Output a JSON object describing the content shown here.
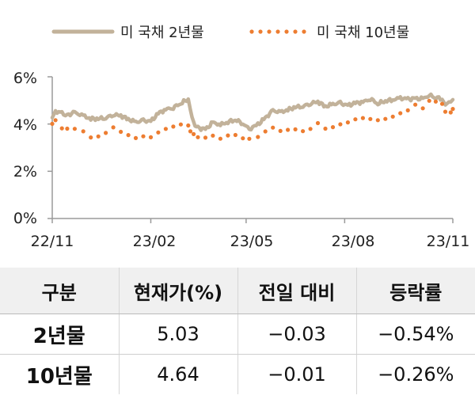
{
  "chart_data": {
    "type": "line",
    "title": "",
    "xlabel": "",
    "ylabel": "",
    "x_ticks": [
      "22/11",
      "23/02",
      "23/05",
      "23/08",
      "23/11"
    ],
    "y_ticks": [
      "0%",
      "2%",
      "4%",
      "6%"
    ],
    "ylim": [
      0,
      6
    ],
    "grid": false,
    "legend_position": "top",
    "series": [
      {
        "name": "미 국채 2년물",
        "style": "solid",
        "color": "#c2b29a",
        "points": [
          [
            "2022-11-01",
            4.3
          ],
          [
            "2022-11-04",
            4.55
          ],
          [
            "2022-11-10",
            4.45
          ],
          [
            "2022-11-15",
            4.38
          ],
          [
            "2022-11-22",
            4.48
          ],
          [
            "2022-11-30",
            4.35
          ],
          [
            "2022-12-07",
            4.22
          ],
          [
            "2022-12-14",
            4.23
          ],
          [
            "2022-12-21",
            4.26
          ],
          [
            "2022-12-28",
            4.4
          ],
          [
            "2023-01-04",
            4.36
          ],
          [
            "2023-01-11",
            4.2
          ],
          [
            "2023-01-18",
            4.08
          ],
          [
            "2023-01-25",
            4.14
          ],
          [
            "2023-02-01",
            4.11
          ],
          [
            "2023-02-08",
            4.45
          ],
          [
            "2023-02-15",
            4.62
          ],
          [
            "2023-02-22",
            4.7
          ],
          [
            "2023-03-01",
            4.88
          ],
          [
            "2023-03-08",
            5.05
          ],
          [
            "2023-03-10",
            4.6
          ],
          [
            "2023-03-13",
            4.03
          ],
          [
            "2023-03-17",
            3.84
          ],
          [
            "2023-03-24",
            3.77
          ],
          [
            "2023-03-31",
            4.06
          ],
          [
            "2023-04-07",
            3.97
          ],
          [
            "2023-04-14",
            4.09
          ],
          [
            "2023-04-21",
            4.18
          ],
          [
            "2023-04-28",
            4.03
          ],
          [
            "2023-05-04",
            3.78
          ],
          [
            "2023-05-12",
            3.98
          ],
          [
            "2023-05-19",
            4.26
          ],
          [
            "2023-05-26",
            4.56
          ],
          [
            "2023-06-02",
            4.5
          ],
          [
            "2023-06-09",
            4.6
          ],
          [
            "2023-06-16",
            4.72
          ],
          [
            "2023-06-23",
            4.75
          ],
          [
            "2023-06-30",
            4.87
          ],
          [
            "2023-07-07",
            4.95
          ],
          [
            "2023-07-14",
            4.74
          ],
          [
            "2023-07-21",
            4.84
          ],
          [
            "2023-07-28",
            4.88
          ],
          [
            "2023-08-04",
            4.78
          ],
          [
            "2023-08-11",
            4.89
          ],
          [
            "2023-08-18",
            4.93
          ],
          [
            "2023-08-25",
            5.07
          ],
          [
            "2023-09-01",
            4.87
          ],
          [
            "2023-09-08",
            4.98
          ],
          [
            "2023-09-15",
            5.03
          ],
          [
            "2023-09-22",
            5.1
          ],
          [
            "2023-09-29",
            5.05
          ],
          [
            "2023-10-06",
            5.08
          ],
          [
            "2023-10-13",
            5.06
          ],
          [
            "2023-10-19",
            5.22
          ],
          [
            "2023-10-25",
            5.12
          ],
          [
            "2023-10-31",
            5.07
          ],
          [
            "2023-11-03",
            4.85
          ],
          [
            "2023-11-08",
            4.95
          ],
          [
            "2023-11-10",
            5.03
          ]
        ]
      },
      {
        "name": "미 국채 10년물",
        "style": "dotted",
        "color": "#ed7d31",
        "points": [
          [
            "2022-11-01",
            4.05
          ],
          [
            "2022-11-04",
            4.16
          ],
          [
            "2022-11-10",
            3.82
          ],
          [
            "2022-11-15",
            3.78
          ],
          [
            "2022-11-22",
            3.75
          ],
          [
            "2022-11-30",
            3.68
          ],
          [
            "2022-12-07",
            3.42
          ],
          [
            "2022-12-14",
            3.48
          ],
          [
            "2022-12-21",
            3.67
          ],
          [
            "2022-12-28",
            3.88
          ],
          [
            "2023-01-04",
            3.69
          ],
          [
            "2023-01-11",
            3.55
          ],
          [
            "2023-01-18",
            3.37
          ],
          [
            "2023-01-25",
            3.45
          ],
          [
            "2023-02-01",
            3.42
          ],
          [
            "2023-02-08",
            3.61
          ],
          [
            "2023-02-15",
            3.81
          ],
          [
            "2023-02-22",
            3.92
          ],
          [
            "2023-03-01",
            4.0
          ],
          [
            "2023-03-08",
            3.98
          ],
          [
            "2023-03-10",
            3.7
          ],
          [
            "2023-03-13",
            3.55
          ],
          [
            "2023-03-17",
            3.43
          ],
          [
            "2023-03-24",
            3.38
          ],
          [
            "2023-03-31",
            3.48
          ],
          [
            "2023-04-07",
            3.39
          ],
          [
            "2023-04-14",
            3.52
          ],
          [
            "2023-04-21",
            3.57
          ],
          [
            "2023-04-28",
            3.44
          ],
          [
            "2023-05-04",
            3.38
          ],
          [
            "2023-05-12",
            3.46
          ],
          [
            "2023-05-19",
            3.67
          ],
          [
            "2023-05-26",
            3.8
          ],
          [
            "2023-06-02",
            3.69
          ],
          [
            "2023-06-09",
            3.74
          ],
          [
            "2023-06-16",
            3.77
          ],
          [
            "2023-06-23",
            3.74
          ],
          [
            "2023-06-30",
            3.82
          ],
          [
            "2023-07-07",
            4.06
          ],
          [
            "2023-07-14",
            3.83
          ],
          [
            "2023-07-21",
            3.84
          ],
          [
            "2023-07-28",
            3.96
          ],
          [
            "2023-08-04",
            4.05
          ],
          [
            "2023-08-11",
            4.16
          ],
          [
            "2023-08-18",
            4.26
          ],
          [
            "2023-08-25",
            4.24
          ],
          [
            "2023-09-01",
            4.18
          ],
          [
            "2023-09-08",
            4.26
          ],
          [
            "2023-09-15",
            4.33
          ],
          [
            "2023-09-22",
            4.44
          ],
          [
            "2023-09-29",
            4.57
          ],
          [
            "2023-10-06",
            4.78
          ],
          [
            "2023-10-13",
            4.63
          ],
          [
            "2023-10-19",
            4.99
          ],
          [
            "2023-10-25",
            4.95
          ],
          [
            "2023-10-31",
            4.88
          ],
          [
            "2023-11-03",
            4.57
          ],
          [
            "2023-11-08",
            4.5
          ],
          [
            "2023-11-10",
            4.64
          ]
        ]
      }
    ]
  },
  "table": {
    "headers": [
      "구분",
      "현재가(%)",
      "전일 대비",
      "등락률"
    ],
    "rows": [
      [
        "2년물",
        "5.03",
        "−0.03",
        "−0.54%"
      ],
      [
        "10년물",
        "4.64",
        "−0.01",
        "−0.26%"
      ]
    ]
  }
}
